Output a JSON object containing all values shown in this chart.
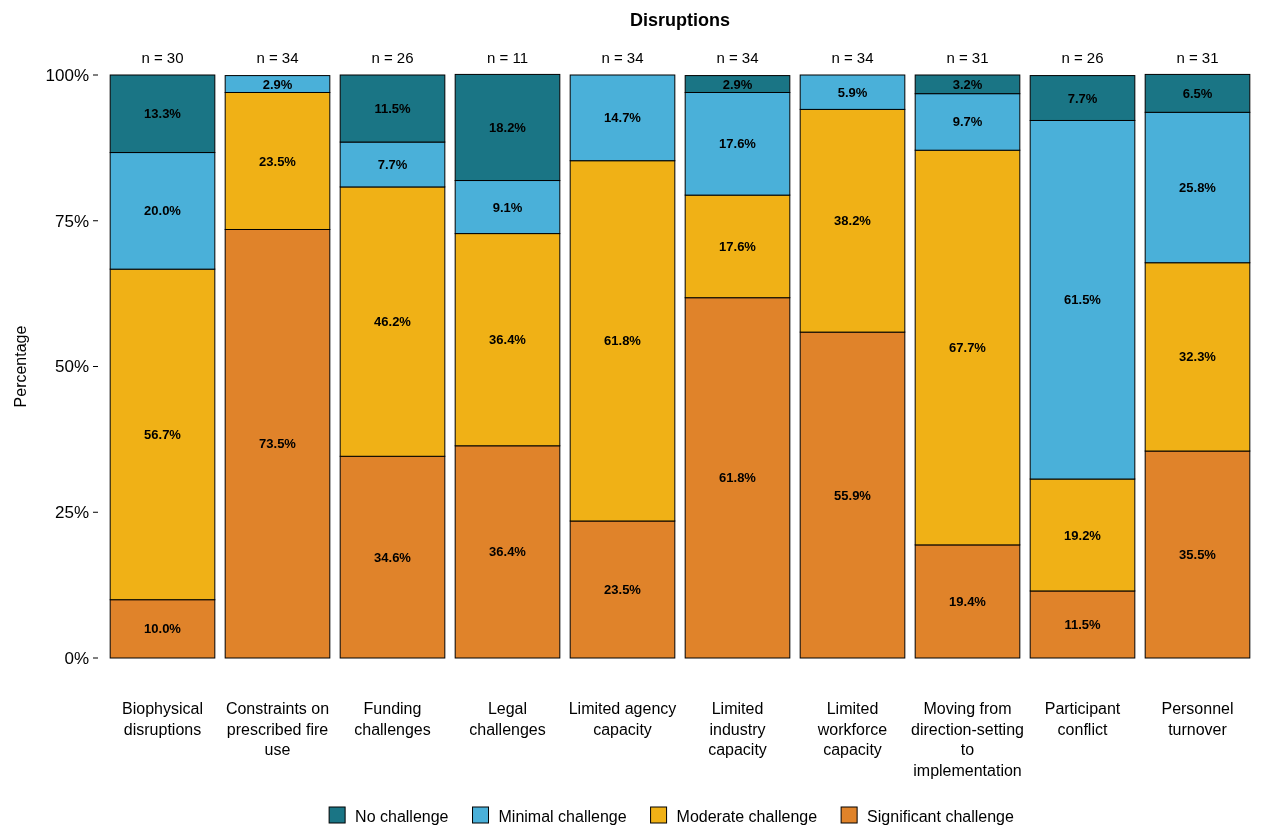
{
  "chart_data": {
    "type": "bar",
    "title": "Disruptions",
    "ylabel": "Percentage",
    "stacked": true,
    "legend": "bottom",
    "grid": false,
    "ylim": [
      0,
      100
    ],
    "yticks": [
      {
        "value": 0,
        "label": "0%"
      },
      {
        "value": 25,
        "label": "25%"
      },
      {
        "value": 50,
        "label": "50%"
      },
      {
        "value": 75,
        "label": "75%"
      },
      {
        "value": 100,
        "label": "100%"
      }
    ],
    "categories": [
      "Biophysical disruptions",
      "Constraints on prescribed fire use",
      "Funding challenges",
      "Legal challenges",
      "Limited agency capacity",
      "Limited industry capacity",
      "Limited workforce capacity",
      "Moving from direction-setting to implementation",
      "Participant conflict",
      "Personnel turnover"
    ],
    "annotations": [
      {
        "text": "n = 30",
        "x": "Biophysical disruptions",
        "y": 100
      },
      {
        "text": "n = 34",
        "x": "Constraints on prescribed fire use",
        "y": 100
      },
      {
        "text": "n = 26",
        "x": "Funding challenges",
        "y": 100
      },
      {
        "text": "n = 11",
        "x": "Legal challenges",
        "y": 100
      },
      {
        "text": "n = 34",
        "x": "Limited agency capacity",
        "y": 100
      },
      {
        "text": "n = 34",
        "x": "Limited industry capacity",
        "y": 100
      },
      {
        "text": "n = 34",
        "x": "Limited workforce capacity",
        "y": 100
      },
      {
        "text": "n = 31",
        "x": "Moving from direction-setting to implementation",
        "y": 100
      },
      {
        "text": "n = 26",
        "x": "Participant conflict",
        "y": 100
      },
      {
        "text": "n = 31",
        "x": "Personnel turnover",
        "y": 100
      }
    ],
    "series": [
      {
        "name": "Significant challenge",
        "color": "#e0832a",
        "values": [
          10.0,
          73.5,
          34.6,
          36.4,
          23.5,
          61.8,
          55.9,
          19.4,
          11.5,
          35.5
        ],
        "value_labels": [
          "10.0%",
          "73.5%",
          "34.6%",
          "36.4%",
          "23.5%",
          "61.8%",
          "55.9%",
          "19.4%",
          "11.5%",
          "35.5%"
        ]
      },
      {
        "name": "Moderate challenge",
        "color": "#f0b116",
        "values": [
          56.7,
          23.5,
          46.2,
          36.4,
          61.8,
          17.6,
          38.2,
          67.7,
          19.2,
          32.3
        ],
        "value_labels": [
          "56.7%",
          "23.5%",
          "46.2%",
          "36.4%",
          "61.8%",
          "17.6%",
          "38.2%",
          "67.7%",
          "19.2%",
          "32.3%"
        ]
      },
      {
        "name": "Minimal challenge",
        "color": "#4ab0d9",
        "values": [
          20.0,
          2.9,
          7.7,
          9.1,
          14.7,
          17.6,
          5.9,
          9.7,
          61.5,
          25.8
        ],
        "value_labels": [
          "20.0%",
          "2.9%",
          "7.7%",
          "9.1%",
          "14.7%",
          "17.6%",
          "5.9%",
          "9.7%",
          "61.5%",
          "25.8%"
        ]
      },
      {
        "name": "No challenge",
        "color": "#1a7585",
        "values": [
          13.3,
          0,
          11.5,
          18.2,
          0,
          2.9,
          0,
          3.2,
          7.7,
          6.5
        ],
        "value_labels": [
          "13.3%",
          null,
          "11.5%",
          "18.2%",
          null,
          "2.9%",
          null,
          "3.2%",
          "7.7%",
          "6.5%"
        ]
      }
    ]
  }
}
